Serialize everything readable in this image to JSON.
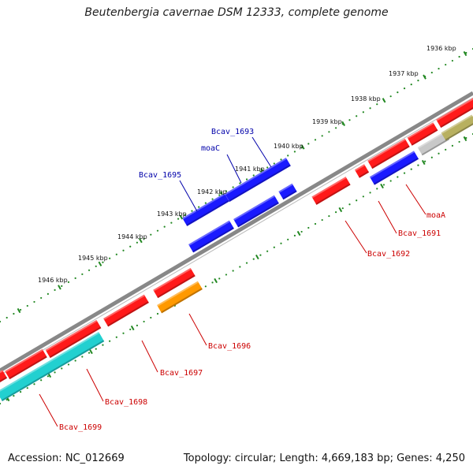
{
  "title": "Beutenbergia cavernae DSM 12333, complete genome",
  "footer": {
    "accession": "Accession: NC_012669",
    "summary": "Topology: circular; Length: 4,669,183 bp; Genes: 4,250"
  },
  "scale_labels": [
    "1936 kbp",
    "1937 kbp",
    "1938 kbp",
    "1939 kbp",
    "1940 kbp",
    "1941 kbp",
    "1942 kbp",
    "1943 kbp",
    "1944 kbp",
    "1945 kbp",
    "1946 kbp"
  ],
  "colors": {
    "backbone": "#888888",
    "forward_gene": "#ff1a1a",
    "reverse_gene": "#1a1aff",
    "rna": "#ff9900",
    "cyan_gene": "#22d0d0",
    "olive_gene": "#b8b060",
    "grey_gene": "#c8c8c8",
    "tick_green": "#228822",
    "label_red": "#cc0000",
    "label_blue": "#0000aa"
  },
  "gene_labels": {
    "bcav_1693": "Bcav_1693",
    "moac": "moaC",
    "bcav_1695": "Bcav_1695",
    "moaa": "moaA",
    "bcav_1691": "Bcav_1691",
    "bcav_1692": "Bcav_1692",
    "bcav_1696": "Bcav_1696",
    "bcav_1697": "Bcav_1697",
    "bcav_1698": "Bcav_1698",
    "bcav_1699": "Bcav_1699"
  }
}
